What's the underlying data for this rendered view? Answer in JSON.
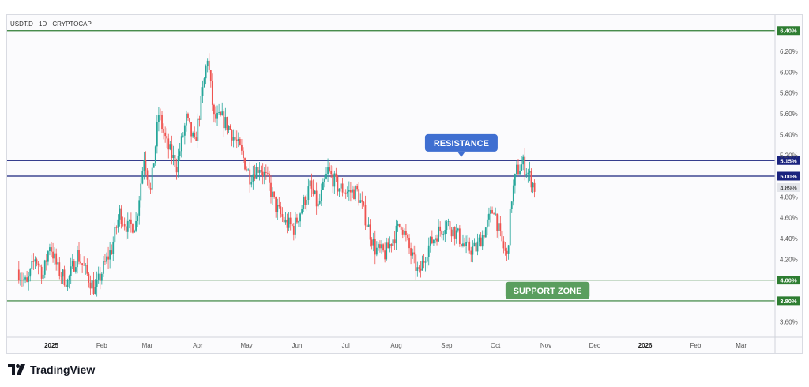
{
  "brand": {
    "name": "TradingView"
  },
  "chart_data": {
    "type": "candlestick",
    "title": "USDT.D · 1D · CRYPTOCAP",
    "y_axis": {
      "min": 3.45,
      "max": 6.55,
      "ticks": [
        "3.60%",
        "4.20%",
        "4.40%",
        "4.60%",
        "4.80%",
        "5.20%",
        "5.40%",
        "5.60%",
        "5.80%",
        "6.00%",
        "6.20%"
      ],
      "tick_values": [
        3.6,
        4.2,
        4.4,
        4.6,
        4.8,
        5.2,
        5.4,
        5.6,
        5.8,
        6.0,
        6.2
      ]
    },
    "x_axis": {
      "ticks": [
        {
          "label": "2025",
          "date": "2025-01-01",
          "bold": true
        },
        {
          "label": "Feb",
          "date": "2025-02-01"
        },
        {
          "label": "Mar",
          "date": "2025-03-01"
        },
        {
          "label": "Apr",
          "date": "2025-04-01"
        },
        {
          "label": "May",
          "date": "2025-05-01"
        },
        {
          "label": "Jun",
          "date": "2025-06-01"
        },
        {
          "label": "Jul",
          "date": "2025-07-01"
        },
        {
          "label": "Aug",
          "date": "2025-08-01"
        },
        {
          "label": "Sep",
          "date": "2025-09-01"
        },
        {
          "label": "Oct",
          "date": "2025-10-01"
        },
        {
          "label": "Nov",
          "date": "2025-11-01"
        },
        {
          "label": "Dec",
          "date": "2025-12-01"
        },
        {
          "label": "2026",
          "date": "2026-01-01",
          "bold": true
        },
        {
          "label": "Feb",
          "date": "2026-02-01"
        },
        {
          "label": "Mar",
          "date": "2026-03-01"
        }
      ]
    },
    "price_path": [
      [
        "2024-12-12",
        4.1
      ],
      [
        "2024-12-18",
        3.95
      ],
      [
        "2024-12-23",
        4.22
      ],
      [
        "2024-12-28",
        4.05
      ],
      [
        "2025-01-01",
        4.35
      ],
      [
        "2025-01-06",
        4.1
      ],
      [
        "2025-01-12",
        3.98
      ],
      [
        "2025-01-18",
        4.25
      ],
      [
        "2025-01-24",
        4.05
      ],
      [
        "2025-01-29",
        3.9
      ],
      [
        "2025-02-03",
        4.12
      ],
      [
        "2025-02-08",
        4.3
      ],
      [
        "2025-02-13",
        4.65
      ],
      [
        "2025-02-18",
        4.5
      ],
      [
        "2025-02-23",
        4.55
      ],
      [
        "2025-02-28",
        5.2
      ],
      [
        "2025-03-04",
        4.85
      ],
      [
        "2025-03-09",
        5.6
      ],
      [
        "2025-03-14",
        5.3
      ],
      [
        "2025-03-20",
        5.1
      ],
      [
        "2025-03-26",
        5.55
      ],
      [
        "2025-03-31",
        5.3
      ],
      [
        "2025-04-04",
        5.7
      ],
      [
        "2025-04-08",
        6.15
      ],
      [
        "2025-04-12",
        5.55
      ],
      [
        "2025-04-17",
        5.55
      ],
      [
        "2025-04-22",
        5.45
      ],
      [
        "2025-04-28",
        5.25
      ],
      [
        "2025-05-04",
        5.0
      ],
      [
        "2025-05-10",
        5.1
      ],
      [
        "2025-05-15",
        4.95
      ],
      [
        "2025-05-20",
        4.7
      ],
      [
        "2025-05-26",
        4.55
      ],
      [
        "2025-05-31",
        4.5
      ],
      [
        "2025-06-05",
        4.7
      ],
      [
        "2025-06-10",
        4.9
      ],
      [
        "2025-06-15",
        4.7
      ],
      [
        "2025-06-21",
        5.05
      ],
      [
        "2025-06-27",
        4.9
      ],
      [
        "2025-07-03",
        4.85
      ],
      [
        "2025-07-09",
        4.85
      ],
      [
        "2025-07-15",
        4.55
      ],
      [
        "2025-07-20",
        4.3
      ],
      [
        "2025-07-26",
        4.25
      ],
      [
        "2025-07-31",
        4.4
      ],
      [
        "2025-08-05",
        4.55
      ],
      [
        "2025-08-11",
        4.25
      ],
      [
        "2025-08-16",
        4.05
      ],
      [
        "2025-08-21",
        4.3
      ],
      [
        "2025-08-27",
        4.45
      ],
      [
        "2025-09-02",
        4.55
      ],
      [
        "2025-09-08",
        4.45
      ],
      [
        "2025-09-14",
        4.3
      ],
      [
        "2025-09-20",
        4.3
      ],
      [
        "2025-09-26",
        4.5
      ],
      [
        "2025-10-01",
        4.7
      ],
      [
        "2025-10-05",
        4.4
      ],
      [
        "2025-10-09",
        4.22
      ],
      [
        "2025-10-12",
        4.8
      ],
      [
        "2025-10-15",
        5.05
      ],
      [
        "2025-10-19",
        5.12
      ],
      [
        "2025-10-23",
        5.0
      ],
      [
        "2025-10-26",
        4.89
      ]
    ],
    "levels": [
      {
        "value": 6.4,
        "label": "6.40%",
        "color": "#2e7d32",
        "bg": "#2e7d32"
      },
      {
        "value": 5.15,
        "label": "5.15%",
        "color": "#1a237e",
        "bg": "#1a237e"
      },
      {
        "value": 5.0,
        "label": "5.00%",
        "color": "#1a237e",
        "bg": "#1a237e"
      },
      {
        "value": 4.0,
        "label": "4.00%",
        "color": "#2e7d32",
        "bg": "#2e7d32"
      },
      {
        "value": 3.8,
        "label": "3.80%",
        "color": "#2e7d32",
        "bg": "#2e7d32"
      }
    ],
    "last_price": {
      "value": 4.89,
      "label": "4.89%"
    },
    "annotations": [
      {
        "text": "RESISTANCE",
        "color": "#3f6fd1",
        "date": "2025-09-10",
        "value": 5.32,
        "pointer": "down"
      },
      {
        "text": "SUPPORT ZONE",
        "color": "#5a9e5e",
        "date": "2025-11-02",
        "value": 3.9,
        "pointer": "none"
      }
    ],
    "colors": {
      "up": "#26a69a",
      "down": "#ef5350"
    }
  }
}
